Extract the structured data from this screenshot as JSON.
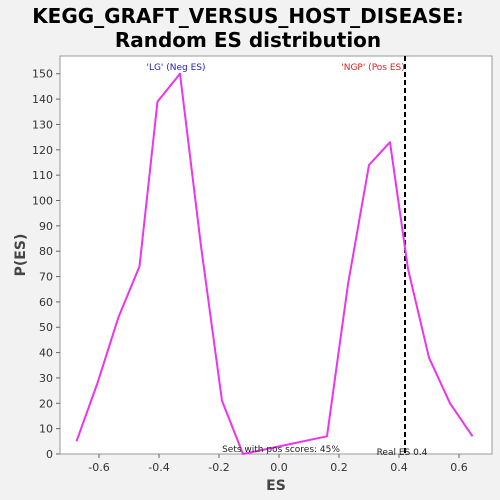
{
  "chart_data": {
    "type": "line",
    "title_line1": "KEGG_GRAFT_VERSUS_HOST_DISEASE:",
    "title_line2": "Random ES distribution",
    "xlabel": "ES",
    "ylabel": "P(ES)",
    "xlim": [
      -0.73,
      0.71
    ],
    "ylim": [
      0,
      157
    ],
    "xticks": [
      -0.6,
      -0.4,
      -0.2,
      0.0,
      0.2,
      0.4,
      0.6
    ],
    "xtick_labels": [
      "-0.6",
      "-0.4",
      "-0.2",
      "0.0",
      "0.2",
      "0.4",
      "0.6"
    ],
    "yticks": [
      0,
      10,
      20,
      30,
      40,
      50,
      60,
      70,
      80,
      90,
      100,
      110,
      120,
      130,
      140,
      150
    ],
    "ytick_labels": [
      "0",
      "10",
      "20",
      "30",
      "40",
      "50",
      "60",
      "70",
      "80",
      "90",
      "100",
      "110",
      "120",
      "130",
      "140",
      "150"
    ],
    "series": [
      {
        "color": "#ee33ee",
        "x": [
          -0.675,
          -0.605,
          -0.535,
          -0.465,
          -0.405,
          -0.33,
          -0.26,
          -0.19,
          -0.12,
          0.16,
          0.23,
          0.3,
          0.37,
          0.43,
          0.5,
          0.57,
          0.645
        ],
        "y": [
          5,
          28,
          54,
          74,
          139,
          150,
          82,
          21,
          0,
          7,
          67,
          114,
          123,
          73,
          38,
          20,
          7
        ]
      }
    ],
    "reference_line": {
      "x": 0.42,
      "color": "#000000"
    },
    "annotations": {
      "neg_label": "'LG' (Neg ES)",
      "neg_color": "#2222cc",
      "pos_label": "'NGP' (Pos ES)",
      "pos_color": "#dd2222",
      "pos_scores": "Sets with pos scores: 45%",
      "real_es": "Real ES 0.4"
    }
  }
}
